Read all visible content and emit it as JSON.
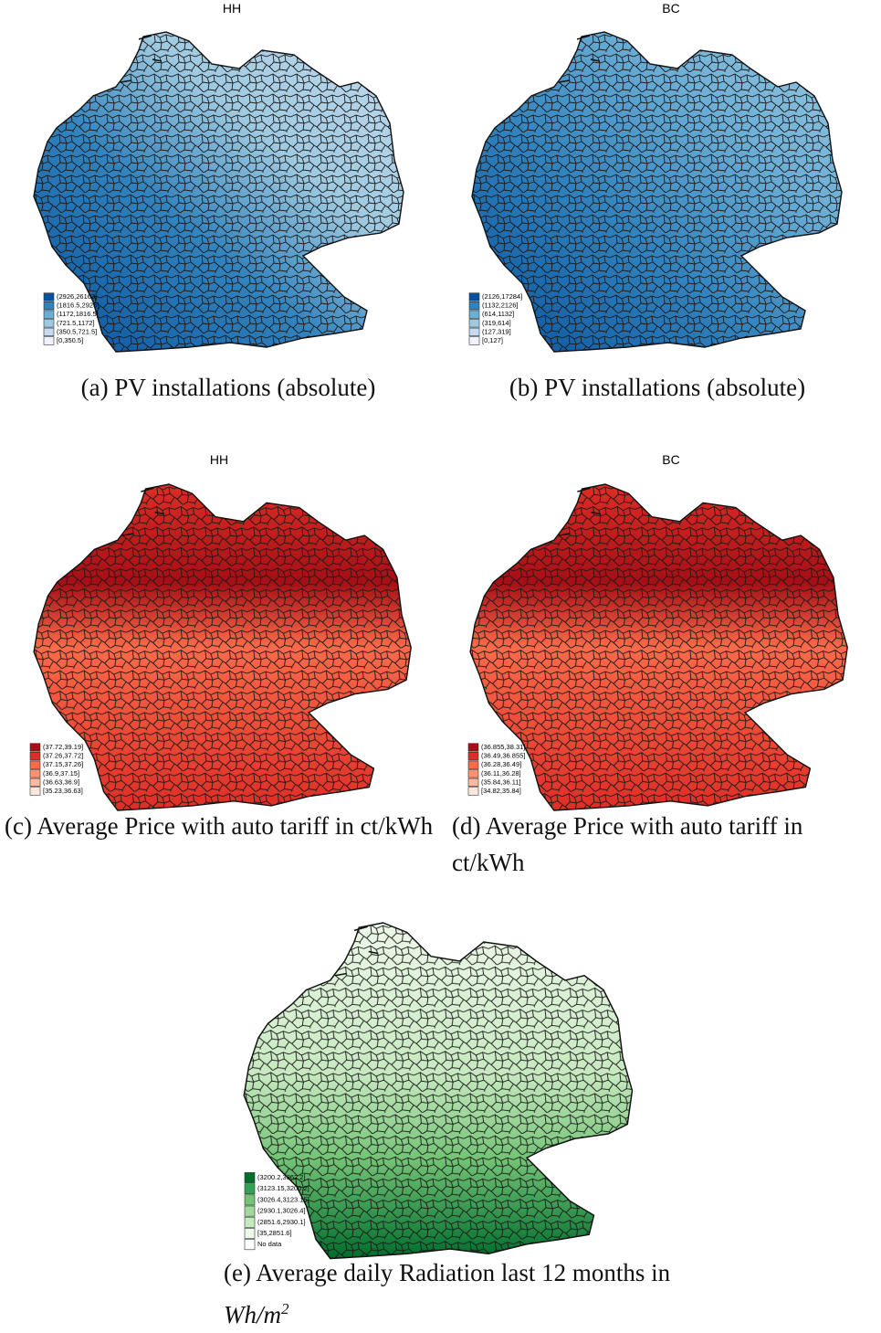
{
  "panels": [
    {
      "title": "HH",
      "caption": "(a) PV installations (absolute)",
      "legend": [
        {
          "label": "(2926,26163]",
          "color": "#08519c"
        },
        {
          "label": "(1816.5,2926]",
          "color": "#3182bd"
        },
        {
          "label": "(1172,1816.5]",
          "color": "#6baed6"
        },
        {
          "label": "(721.5,1172]",
          "color": "#9ecae1"
        },
        {
          "label": "(350.5,721.5]",
          "color": "#c6dbef"
        },
        {
          "label": "[0,350.5]",
          "color": "#eff3ff"
        }
      ]
    },
    {
      "title": "BC",
      "caption": "(b) PV installations (absolute)",
      "legend": [
        {
          "label": "(2126,17284]",
          "color": "#08519c"
        },
        {
          "label": "(1132,2126]",
          "color": "#3182bd"
        },
        {
          "label": "(614,1132]",
          "color": "#6baed6"
        },
        {
          "label": "(319,614]",
          "color": "#9ecae1"
        },
        {
          "label": "(127,319]",
          "color": "#c6dbef"
        },
        {
          "label": "[0,127]",
          "color": "#eff3ff"
        }
      ]
    },
    {
      "title": "HH",
      "caption": "(c) Average Price with auto tariff in ct/kWh",
      "legend": [
        {
          "label": "(37.72,39.19]",
          "color": "#a50f15"
        },
        {
          "label": "(37.26,37.72]",
          "color": "#de2d26"
        },
        {
          "label": "(37.15,37.26]",
          "color": "#fb6a4a"
        },
        {
          "label": "(36.9,37.15]",
          "color": "#fc9272"
        },
        {
          "label": "(36.63,36.9]",
          "color": "#fcbba1"
        },
        {
          "label": "[35.23,36.63]",
          "color": "#fee5d9"
        }
      ]
    },
    {
      "title": "BC",
      "caption": "(d) Average Price with auto tariff in ct/kWh",
      "legend": [
        {
          "label": "(36.855,38.31]",
          "color": "#a50f15"
        },
        {
          "label": "(36.49,36.855]",
          "color": "#de2d26"
        },
        {
          "label": "(36.28,36.49]",
          "color": "#fb6a4a"
        },
        {
          "label": "(36.11,36.28]",
          "color": "#fc9272"
        },
        {
          "label": "(35.84,36.11]",
          "color": "#fcbba1"
        },
        {
          "label": "[34.82,35.84]",
          "color": "#fee5d9"
        }
      ]
    },
    {
      "caption_parts": [
        "(e) Average daily Radiation last 12 months in ",
        "Wh/m",
        "2"
      ],
      "legend": [
        {
          "label": "(3200.2,3362.2]",
          "color": "#006d2c"
        },
        {
          "label": "(3123.15,3200.2]",
          "color": "#31a354"
        },
        {
          "label": "(3026.4,3123.15]",
          "color": "#74c476"
        },
        {
          "label": "(2930.1,3026.4]",
          "color": "#a1d99b"
        },
        {
          "label": "(2851.6,2930.1]",
          "color": "#c7e9c0"
        },
        {
          "label": "[35,2851.6]",
          "color": "#edf8e9"
        },
        {
          "label": "No data",
          "color": "#ffffff"
        }
      ]
    }
  ]
}
